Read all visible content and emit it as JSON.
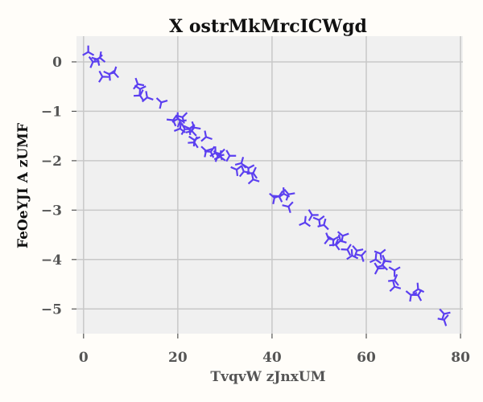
{
  "chart_data": {
    "type": "scatter",
    "title": "X ostrMkMrcICWgd",
    "xlabel": "TvqvW zJnxUM",
    "ylabel": "FeOeYJI A zUMF",
    "xlim": [
      -1.5,
      80.5
    ],
    "ylim": [
      -5.5,
      0.52
    ],
    "x_ticks": [
      0,
      20,
      40,
      60,
      80
    ],
    "y_ticks": [
      0,
      -1,
      -2,
      -3,
      -4,
      -5
    ],
    "x_tick_labels": [
      "0",
      "20",
      "40",
      "60",
      "80"
    ],
    "y_tick_labels": [
      "0",
      "−1",
      "−2",
      "−3",
      "−4",
      "−5"
    ],
    "grid": true,
    "marker": "tri",
    "series": [
      {
        "color": "#5b3ff0",
        "points": [
          {
            "x": 1,
            "y": 0.2
          },
          {
            "x": 2,
            "y": 0.0
          },
          {
            "x": 3,
            "y": 0.05
          },
          {
            "x": 3.5,
            "y": 0.08
          },
          {
            "x": 4,
            "y": -0.3
          },
          {
            "x": 5.5,
            "y": -0.25
          },
          {
            "x": 6.5,
            "y": -0.22
          },
          {
            "x": 11.5,
            "y": -0.45
          },
          {
            "x": 12,
            "y": -0.55
          },
          {
            "x": 12,
            "y": -0.68
          },
          {
            "x": 13.5,
            "y": -0.72
          },
          {
            "x": 16.5,
            "y": -0.82
          },
          {
            "x": 19,
            "y": -1.18
          },
          {
            "x": 20,
            "y": -1.15
          },
          {
            "x": 20.5,
            "y": -1.2
          },
          {
            "x": 21,
            "y": -1.12
          },
          {
            "x": 20.5,
            "y": -1.35
          },
          {
            "x": 21.5,
            "y": -1.36
          },
          {
            "x": 22.5,
            "y": -1.35
          },
          {
            "x": 23,
            "y": -1.4
          },
          {
            "x": 23.5,
            "y": -1.33
          },
          {
            "x": 23.5,
            "y": -1.58
          },
          {
            "x": 23.5,
            "y": -1.63
          },
          {
            "x": 26,
            "y": -1.52
          },
          {
            "x": 26,
            "y": -1.8
          },
          {
            "x": 27,
            "y": -1.82
          },
          {
            "x": 28,
            "y": -1.84
          },
          {
            "x": 28.5,
            "y": -1.9
          },
          {
            "x": 29,
            "y": -1.86
          },
          {
            "x": 29,
            "y": -1.92
          },
          {
            "x": 31,
            "y": -1.9
          },
          {
            "x": 32.5,
            "y": -2.18
          },
          {
            "x": 33.5,
            "y": -2.05
          },
          {
            "x": 34,
            "y": -2.22
          },
          {
            "x": 35,
            "y": -2.15
          },
          {
            "x": 36,
            "y": -2.25
          },
          {
            "x": 36,
            "y": -2.38
          },
          {
            "x": 40.5,
            "y": -2.75
          },
          {
            "x": 41.5,
            "y": -2.72
          },
          {
            "x": 42.5,
            "y": -2.67
          },
          {
            "x": 43.5,
            "y": -2.68
          },
          {
            "x": 43.5,
            "y": -2.93
          },
          {
            "x": 47,
            "y": -3.25
          },
          {
            "x": 48.5,
            "y": -3.1
          },
          {
            "x": 50,
            "y": -3.2
          },
          {
            "x": 51,
            "y": -3.3
          },
          {
            "x": 52,
            "y": -3.58
          },
          {
            "x": 53,
            "y": -3.6
          },
          {
            "x": 53.5,
            "y": -3.7
          },
          {
            "x": 54.5,
            "y": -3.62
          },
          {
            "x": 55,
            "y": -3.52
          },
          {
            "x": 56,
            "y": -3.8
          },
          {
            "x": 57,
            "y": -3.92
          },
          {
            "x": 58,
            "y": -3.82
          },
          {
            "x": 59,
            "y": -3.92
          },
          {
            "x": 62,
            "y": -4.0
          },
          {
            "x": 62.5,
            "y": -4.18
          },
          {
            "x": 63,
            "y": -3.88
          },
          {
            "x": 63.5,
            "y": -4.12
          },
          {
            "x": 64,
            "y": -4.03
          },
          {
            "x": 66,
            "y": -4.22
          },
          {
            "x": 66,
            "y": -4.42
          },
          {
            "x": 66,
            "y": -4.55
          },
          {
            "x": 69.5,
            "y": -4.72
          },
          {
            "x": 71,
            "y": -4.72
          },
          {
            "x": 71,
            "y": -4.6
          },
          {
            "x": 76.5,
            "y": -5.1
          },
          {
            "x": 76.5,
            "y": -5.22
          }
        ]
      }
    ]
  }
}
